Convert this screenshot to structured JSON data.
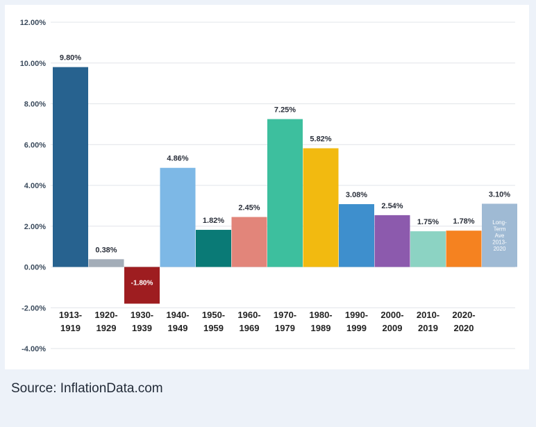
{
  "chart_data": {
    "type": "bar",
    "title": "",
    "xlabel": "",
    "ylabel": "",
    "ylim": [
      -4,
      12
    ],
    "yticks": [
      "12.00%",
      "10.00%",
      "8.00%",
      "6.00%",
      "4.00%",
      "2.00%",
      "0.00%",
      "-2.00%",
      "-4.00%"
    ],
    "ytick_values": [
      12,
      10,
      8,
      6,
      4,
      2,
      0,
      -2,
      -4
    ],
    "grid": true,
    "categories": [
      [
        "1913-",
        "1919"
      ],
      [
        "1920-",
        "1929"
      ],
      [
        "1930-",
        "1939"
      ],
      [
        "1940-",
        "1949"
      ],
      [
        "1950-",
        "1959"
      ],
      [
        "1960-",
        "1969"
      ],
      [
        "1970-",
        "1979"
      ],
      [
        "1980-",
        "1989"
      ],
      [
        "1990-",
        "1999"
      ],
      [
        "2000-",
        "2009"
      ],
      [
        "2010-",
        "2019"
      ],
      [
        "2020-",
        "2020"
      ],
      [
        "",
        ""
      ]
    ],
    "values": [
      9.8,
      0.38,
      -1.8,
      4.86,
      1.82,
      2.45,
      7.25,
      5.82,
      3.08,
      2.54,
      1.75,
      1.78,
      3.1
    ],
    "labels": [
      "9.80%",
      "0.38%",
      "-1.80%",
      "4.86%",
      "1.82%",
      "2.45%",
      "7.25%",
      "5.82%",
      "3.08%",
      "2.54%",
      "1.75%",
      "1.78%",
      "3.10%"
    ],
    "colors": [
      "#27628f",
      "#a3adb8",
      "#9e1d20",
      "#7db8e6",
      "#0a7a76",
      "#e2857a",
      "#3dbf9e",
      "#f2ba10",
      "#3e8fcd",
      "#8c5aad",
      "#8cd3c3",
      "#f58220",
      "#9fbad4"
    ],
    "bar_note": [
      "Long-",
      "Term",
      "Ave",
      "2013-",
      "2020"
    ]
  },
  "source": "Source: InflationData.com"
}
